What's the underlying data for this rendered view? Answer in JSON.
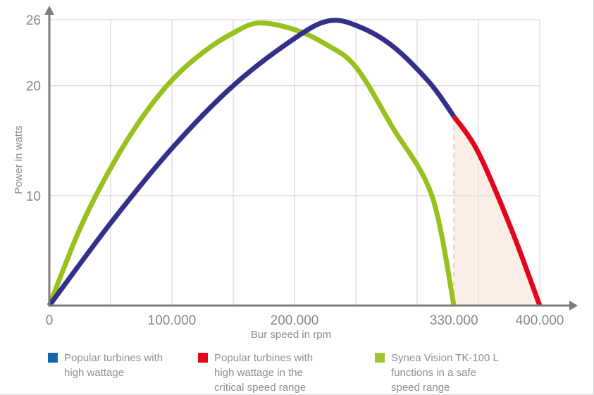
{
  "chart_data": {
    "type": "line",
    "title": "",
    "xlabel": "Bur speed in rpm",
    "ylabel": "Power in watts",
    "xlim": [
      0,
      400000
    ],
    "ylim": [
      0,
      26
    ],
    "grid": {
      "x_step": 50000,
      "h_lines_at_watts": [
        10,
        20,
        26
      ]
    },
    "x_ticks": [
      {
        "value": 0,
        "label": "0"
      },
      {
        "value": 100000,
        "label": "100.000"
      },
      {
        "value": 200000,
        "label": "200.000"
      },
      {
        "value": 330000,
        "label": "330.000"
      },
      {
        "value": 400000,
        "label": "400.000"
      }
    ],
    "y_ticks": [
      {
        "value": 10,
        "label": "10"
      },
      {
        "value": 20,
        "label": "20"
      },
      {
        "value": 26,
        "label": "26"
      }
    ],
    "series": [
      {
        "name": "Popular turbines with high wattage",
        "color": "#33308a",
        "x": [
          0,
          50000,
          100000,
          150000,
          200000,
          228000,
          252000,
          280000,
          310000,
          330000
        ],
        "y": [
          0,
          7.5,
          14.3,
          20,
          24.3,
          25.9,
          25.4,
          23.6,
          20.3,
          17.2
        ]
      },
      {
        "name": "Popular turbines with high wattage in the critical speed range",
        "color": "#e3051b",
        "x": [
          330000,
          350000,
          377000,
          400000
        ],
        "y": [
          17.2,
          13.9,
          6.9,
          0
        ]
      },
      {
        "name": "Synea Vision TK-100 L functions in a safe speed range",
        "color": "#97c11c",
        "x": [
          0,
          25000,
          50000,
          75000,
          100000,
          125000,
          150000,
          171000,
          200000,
          225000,
          250000,
          280000,
          312000,
          330000
        ],
        "y": [
          0,
          7,
          12.5,
          17,
          20.5,
          23,
          24.8,
          25.7,
          25.1,
          23.8,
          21.7,
          16.2,
          10,
          0
        ]
      }
    ],
    "annotations": {
      "critical_speed_range": {
        "dashed_line_rpm": 330000,
        "from_rpm": 330000,
        "to_rpm": 400000,
        "shade_color": "#f6d9c8",
        "dashed_color": "#d8d4d1"
      }
    },
    "legend_position": "bottom"
  },
  "legend": {
    "items": [
      {
        "swatch_color": "#1467af",
        "lines": [
          "Popular turbines with",
          "high wattage"
        ]
      },
      {
        "swatch_color": "#e3051b",
        "lines": [
          "Popular turbines with",
          "high wattage in the",
          "critical speed range"
        ]
      },
      {
        "swatch_color": "#a0c62f",
        "lines": [
          "Synea Vision TK-100 L",
          "functions in a safe",
          "speed range"
        ]
      }
    ]
  },
  "colors": {
    "axis": "#7c7c7c",
    "grid": "#dcdcdc",
    "tick_text": "#878787",
    "legend_text": "#8f8f8f"
  }
}
